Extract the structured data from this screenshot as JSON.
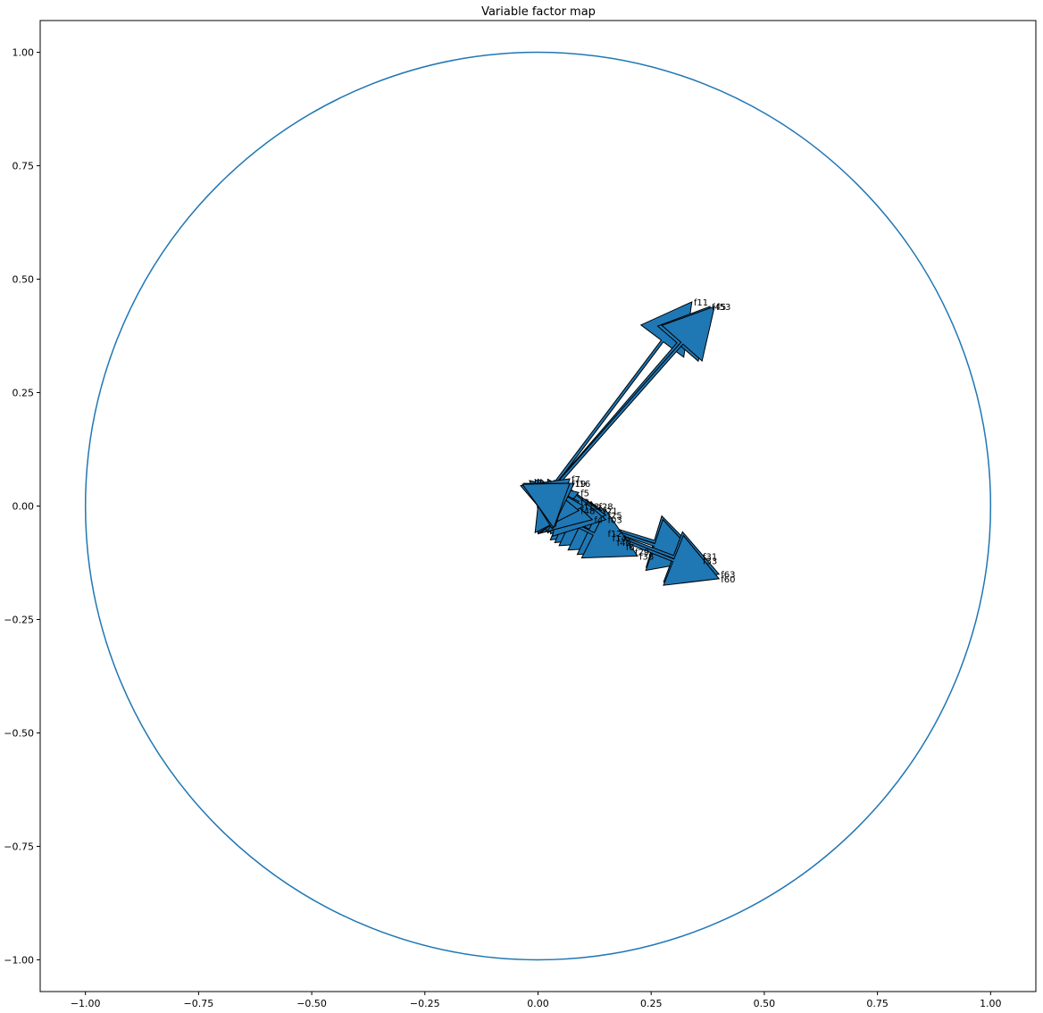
{
  "chart_data": {
    "type": "scatter",
    "title": "Variable factor map",
    "xlabel": "",
    "ylabel": "",
    "xlim": [
      -1.1,
      1.1
    ],
    "ylim": [
      -1.07,
      1.07
    ],
    "xticks": [
      -1.0,
      -0.75,
      -0.5,
      -0.25,
      0.0,
      0.25,
      0.5,
      0.75,
      1.0
    ],
    "xtick_labels": [
      "−1.00",
      "−0.75",
      "−0.50",
      "−0.25",
      "0.00",
      "0.25",
      "0.50",
      "0.75",
      "1.00"
    ],
    "yticks": [
      -1.0,
      -0.75,
      -0.5,
      -0.25,
      0.0,
      0.25,
      0.5,
      0.75,
      1.0
    ],
    "ytick_labels": [
      "−1.00",
      "−0.75",
      "−0.50",
      "−0.25",
      "0.00",
      "0.25",
      "0.50",
      "0.75",
      "1.00"
    ],
    "grid": false,
    "circle": {
      "center": [
        0,
        0
      ],
      "radius": 1.0,
      "color": "#1f77b4"
    },
    "arrow_color": "#1f77b4",
    "arrows": [
      {
        "name": "f11",
        "x": 0.34,
        "y": 0.45
      },
      {
        "name": "f45",
        "x": 0.38,
        "y": 0.44
      },
      {
        "name": "f53",
        "x": 0.39,
        "y": 0.44
      },
      {
        "name": "f31",
        "x": 0.36,
        "y": -0.11
      },
      {
        "name": "f33",
        "x": 0.36,
        "y": -0.12
      },
      {
        "name": "f63",
        "x": 0.4,
        "y": -0.15
      },
      {
        "name": "f60",
        "x": 0.4,
        "y": -0.16
      },
      {
        "name": "f12",
        "x": 0.15,
        "y": -0.06
      },
      {
        "name": "f14",
        "x": 0.16,
        "y": -0.07
      },
      {
        "name": "f40",
        "x": 0.17,
        "y": -0.08
      },
      {
        "name": "f6",
        "x": 0.19,
        "y": -0.09
      },
      {
        "name": "f29",
        "x": 0.21,
        "y": -0.1
      },
      {
        "name": "f38",
        "x": 0.22,
        "y": -0.11
      },
      {
        "name": "f28",
        "x": 0.13,
        "y": 0.0
      },
      {
        "name": "f21",
        "x": 0.14,
        "y": -0.01
      },
      {
        "name": "f25",
        "x": 0.15,
        "y": -0.02
      },
      {
        "name": "f03",
        "x": 0.15,
        "y": -0.03
      },
      {
        "name": "f4",
        "x": 0.12,
        "y": -0.03
      },
      {
        "name": "f5",
        "x": 0.09,
        "y": 0.03
      },
      {
        "name": "f2",
        "x": 0.09,
        "y": 0.01
      },
      {
        "name": "f13",
        "x": 0.1,
        "y": 0.0
      },
      {
        "name": "f48",
        "x": 0.09,
        "y": -0.01
      },
      {
        "name": "f7",
        "x": 0.07,
        "y": 0.06
      },
      {
        "name": "f16",
        "x": 0.08,
        "y": 0.05
      },
      {
        "name": "f19",
        "x": 0.07,
        "y": 0.05
      }
    ]
  }
}
